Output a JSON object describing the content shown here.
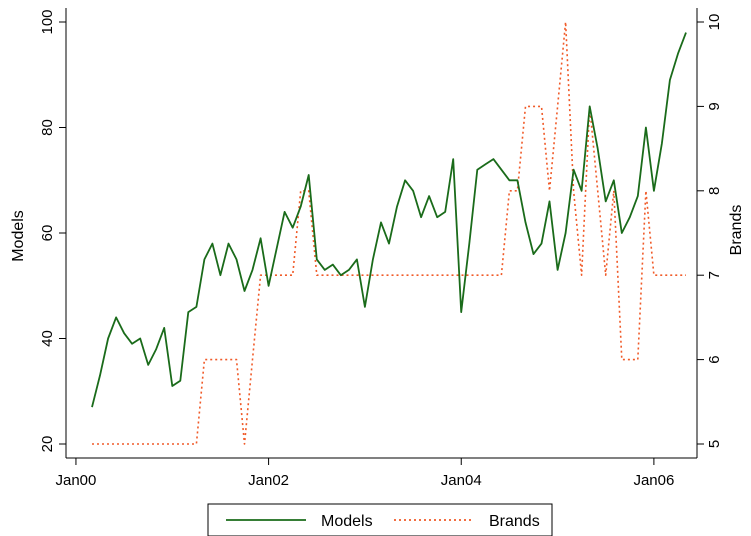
{
  "chart_data": {
    "type": "line",
    "title": "",
    "xlabel": "",
    "ylabel": "Models",
    "y2label": "Brands",
    "x_ticks": [
      "Jan00",
      "Jan02",
      "Jan04",
      "Jan06"
    ],
    "y_ticks": [
      20,
      40,
      60,
      80,
      100
    ],
    "y2_ticks": [
      5,
      6,
      7,
      8,
      9,
      10
    ],
    "ylim": [
      20,
      100
    ],
    "y2lim": [
      5,
      10
    ],
    "xlim": [
      "2000-03",
      "2006-05"
    ],
    "grid": false,
    "legend": "bottom",
    "x": [
      "2000-03",
      "2000-04",
      "2000-05",
      "2000-06",
      "2000-07",
      "2000-08",
      "2000-09",
      "2000-10",
      "2000-11",
      "2000-12",
      "2001-01",
      "2001-02",
      "2001-03",
      "2001-04",
      "2001-05",
      "2001-06",
      "2001-07",
      "2001-08",
      "2001-09",
      "2001-10",
      "2001-11",
      "2001-12",
      "2002-01",
      "2002-02",
      "2002-03",
      "2002-04",
      "2002-05",
      "2002-06",
      "2002-07",
      "2002-08",
      "2002-09",
      "2002-10",
      "2002-11",
      "2002-12",
      "2003-01",
      "2003-02",
      "2003-03",
      "2003-04",
      "2003-05",
      "2003-06",
      "2003-07",
      "2003-08",
      "2003-09",
      "2003-10",
      "2003-11",
      "2003-12",
      "2004-01",
      "2004-02",
      "2004-03",
      "2004-04",
      "2004-05",
      "2004-06",
      "2004-07",
      "2004-08",
      "2004-09",
      "2004-10",
      "2004-11",
      "2004-12",
      "2005-01",
      "2005-02",
      "2005-03",
      "2005-04",
      "2005-05",
      "2005-06",
      "2005-07",
      "2005-08",
      "2005-09",
      "2005-10",
      "2005-11",
      "2005-12",
      "2006-01",
      "2006-02",
      "2006-03",
      "2006-04",
      "2006-05"
    ],
    "series": [
      {
        "name": "Models",
        "axis": "left",
        "color": "#1a6b1a",
        "style": "solid",
        "values": [
          27,
          33,
          40,
          44,
          41,
          39,
          40,
          35,
          38,
          42,
          31,
          32,
          45,
          46,
          55,
          58,
          52,
          58,
          55,
          49,
          53,
          59,
          50,
          57,
          64,
          61,
          65,
          71,
          55,
          53,
          54,
          52,
          53,
          55,
          46,
          55,
          62,
          58,
          65,
          70,
          68,
          63,
          67,
          63,
          64,
          74,
          45,
          58,
          72,
          73,
          74,
          72,
          70,
          70,
          62,
          56,
          58,
          66,
          53,
          60,
          72,
          68,
          84,
          76,
          66,
          70,
          60,
          63,
          67,
          80,
          68,
          77,
          89,
          94,
          98
        ]
      },
      {
        "name": "Brands",
        "axis": "right",
        "color": "#f05a28",
        "style": "dotted",
        "values": [
          5,
          5,
          5,
          5,
          5,
          5,
          5,
          5,
          5,
          5,
          5,
          5,
          5,
          5,
          6,
          6,
          6,
          6,
          6,
          5,
          6,
          7,
          7,
          7,
          7,
          7,
          8,
          8,
          7,
          7,
          7,
          7,
          7,
          7,
          7,
          7,
          7,
          7,
          7,
          7,
          7,
          7,
          7,
          7,
          7,
          7,
          7,
          7,
          7,
          7,
          7,
          7,
          8,
          8,
          9,
          9,
          9,
          8,
          9,
          10,
          8,
          7,
          9,
          8,
          7,
          8,
          6,
          6,
          6,
          8,
          7,
          7,
          7,
          7,
          7
        ]
      }
    ]
  }
}
